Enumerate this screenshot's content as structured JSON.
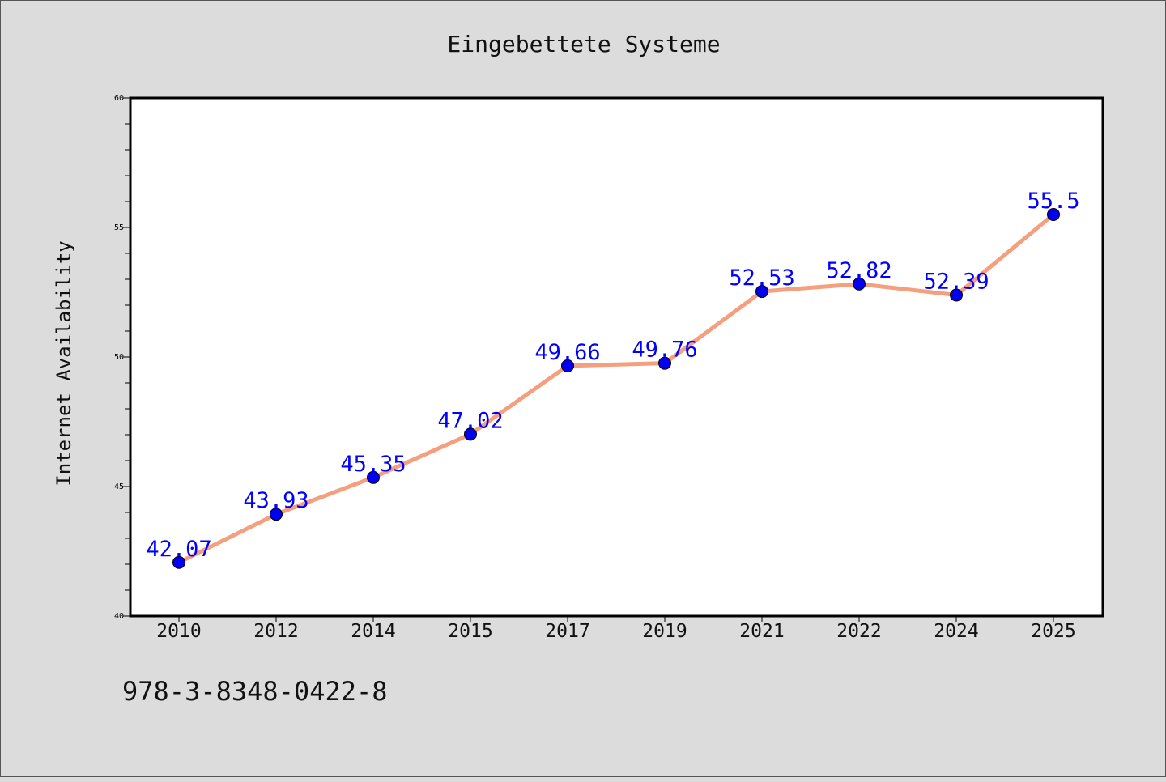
{
  "chart_data": {
    "type": "line",
    "title": "Eingebettete Systeme",
    "xlabel": "",
    "ylabel": "Internet Availability",
    "categories": [
      "2010",
      "2012",
      "2014",
      "2015",
      "2017",
      "2019",
      "2021",
      "2022",
      "2024",
      "2025"
    ],
    "series": [
      {
        "values": [
          42.07,
          43.93,
          45.35,
          47.02,
          49.66,
          49.76,
          52.53,
          52.82,
          52.39,
          55.5
        ],
        "labels": [
          "42.07",
          "43.93",
          "45.35",
          "47.02",
          "49.66",
          "49.76",
          "52.53",
          "52.82",
          "52.39",
          "55.5"
        ]
      }
    ],
    "ylim": [
      40,
      60
    ],
    "yticks": [
      40,
      45,
      50,
      55,
      60
    ],
    "grid": false,
    "colors": {
      "line": "#f4a07f",
      "marker": "#0000ee",
      "label": "#0000ff"
    }
  },
  "footer": {
    "isbn": "978-3-8348-0422-8"
  }
}
